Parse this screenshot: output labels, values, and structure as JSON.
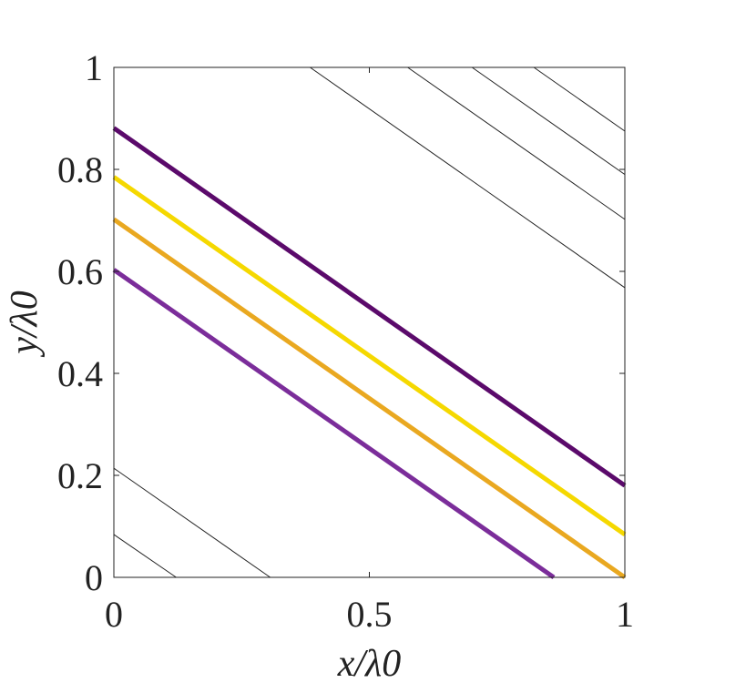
{
  "chart_data": {
    "type": "line",
    "title": "",
    "xlabel": "x/λ0",
    "ylabel": "y/λ0",
    "xlim": [
      0,
      1
    ],
    "ylim": [
      0,
      1
    ],
    "xticks": [
      {
        "value": 0,
        "label": "0"
      },
      {
        "value": 0.5,
        "label": "0.5"
      },
      {
        "value": 1,
        "label": "1"
      }
    ],
    "yticks": [
      {
        "value": 0,
        "label": "0"
      },
      {
        "value": 0.2,
        "label": "0.2"
      },
      {
        "value": 0.4,
        "label": "0.4"
      },
      {
        "value": 0.6,
        "label": "0.6"
      },
      {
        "value": 0.8,
        "label": "0.8"
      },
      {
        "value": 1,
        "label": "1"
      }
    ],
    "grid": false,
    "series": [
      {
        "color": "#5b0a6b",
        "width": "thick",
        "x": [
          0,
          1
        ],
        "y": [
          0.881,
          0.18
        ]
      },
      {
        "color": "#f5d800",
        "width": "thick",
        "x": [
          0,
          1
        ],
        "y": [
          0.785,
          0.084
        ]
      },
      {
        "color": "#e9a820",
        "width": "thick",
        "x": [
          0,
          1
        ],
        "y": [
          0.702,
          0.0
        ]
      },
      {
        "color": "#7b2d9a",
        "width": "thick",
        "x": [
          0,
          0.861
        ],
        "y": [
          0.603,
          0.0
        ]
      }
    ],
    "thin_lines": [
      {
        "color": "#222222",
        "x": [
          0,
          0.122
        ],
        "y": [
          0.084,
          0.0
        ]
      },
      {
        "color": "#222222",
        "x": [
          0,
          0.306
        ],
        "y": [
          0.214,
          0.0
        ]
      },
      {
        "color": "#222222",
        "x": [
          0.384,
          1.0
        ],
        "y": [
          1.0,
          0.568
        ]
      },
      {
        "color": "#222222",
        "x": [
          0.575,
          1.0
        ],
        "y": [
          1.0,
          0.702
        ]
      },
      {
        "color": "#222222",
        "x": [
          0.701,
          1.0
        ],
        "y": [
          1.0,
          0.79
        ]
      },
      {
        "color": "#222222",
        "x": [
          0.822,
          1.0
        ],
        "y": [
          1.0,
          0.875
        ]
      }
    ]
  }
}
